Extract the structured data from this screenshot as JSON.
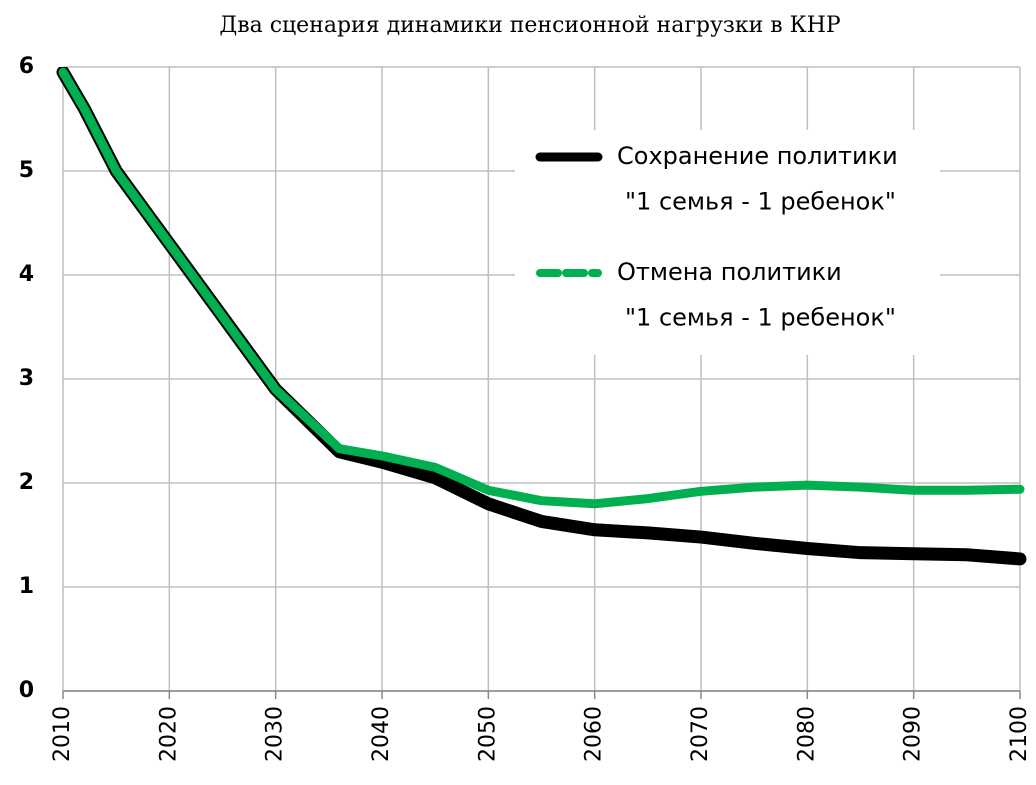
{
  "chart_data": {
    "type": "line",
    "title": "Два сценария динамики пенсионной нагрузки в КНР",
    "x": [
      2010,
      2012,
      2015,
      2020,
      2025,
      2030,
      2036,
      2040,
      2045,
      2050,
      2055,
      2060,
      2065,
      2070,
      2075,
      2080,
      2085,
      2090,
      2095,
      2100
    ],
    "series": [
      {
        "name": "Сохранение политики\n\"1 семья - 1 ребенок\"",
        "color": "#000000",
        "values": [
          5.95,
          5.6,
          5.0,
          4.3,
          3.6,
          2.9,
          2.3,
          2.2,
          2.05,
          1.8,
          1.63,
          1.55,
          1.52,
          1.48,
          1.42,
          1.37,
          1.33,
          1.32,
          1.31,
          1.27
        ]
      },
      {
        "name": "Отмена политики\n\"1 семья - 1 ребенок\"",
        "color": "#00b050",
        "values": [
          5.95,
          5.6,
          5.0,
          4.3,
          3.6,
          2.9,
          2.33,
          2.26,
          2.15,
          1.93,
          1.83,
          1.8,
          1.85,
          1.92,
          1.96,
          1.98,
          1.96,
          1.93,
          1.93,
          1.94
        ]
      }
    ],
    "xlim": [
      2010,
      2100
    ],
    "xticks": [
      2010,
      2020,
      2030,
      2040,
      2050,
      2060,
      2070,
      2080,
      2090,
      2100
    ],
    "ylim": [
      0,
      6
    ],
    "yticks": [
      0,
      1,
      2,
      3,
      4,
      5,
      6
    ],
    "grid": true
  }
}
